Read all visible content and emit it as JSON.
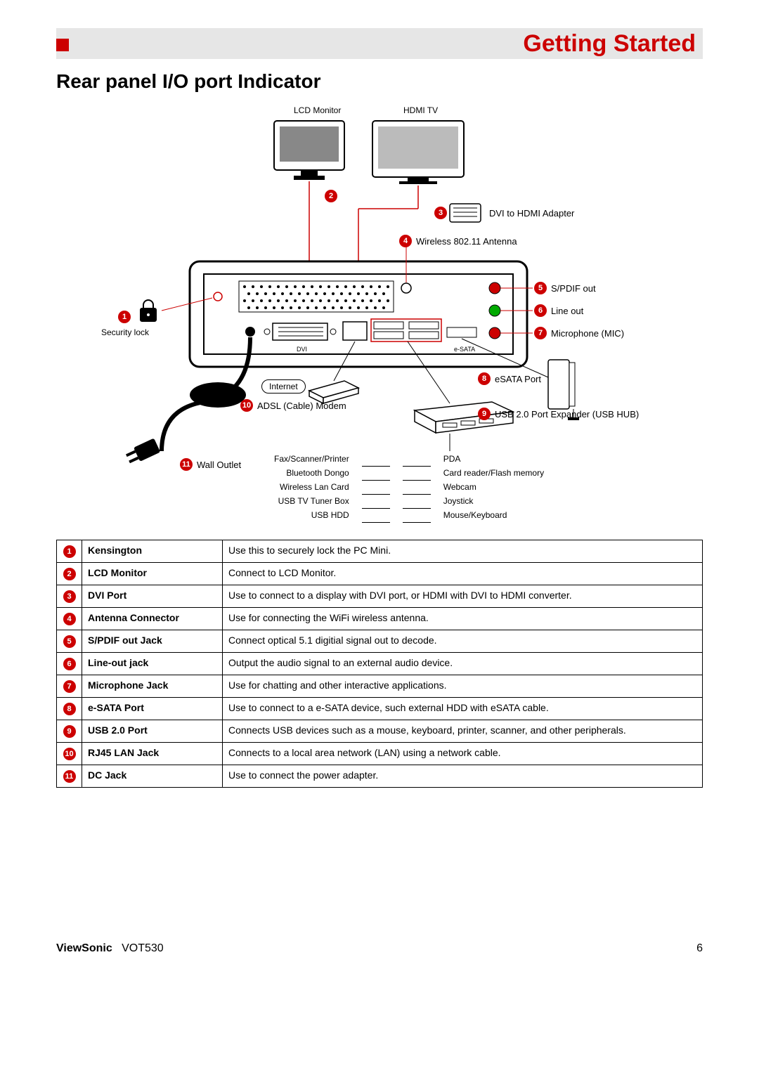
{
  "chapter_title": "Getting Started",
  "section_title": "Rear panel I/O port Indicator",
  "diagram": {
    "top_labels": {
      "lcd": "LCD Monitor",
      "hdmi": "HDMI TV"
    },
    "callouts": {
      "1": "Security lock",
      "2": "",
      "3": "DVI to HDMI Adapter",
      "4": "Wireless 802.11 Antenna",
      "5": "S/PDIF out",
      "6": "Line out",
      "7": "Microphone (MIC)",
      "8": "eSATA Port",
      "9": "USB 2.0 Port Expander (USB HUB)",
      "10": "ADSL (Cable) Modem",
      "11": "Wall Outlet"
    },
    "internet_label": "Internet",
    "rear_port_labels": {
      "dvi": "DVI",
      "esata": "e-SATA"
    },
    "hub_left": [
      "Fax/Scanner/Printer",
      "Bluetooth Dongo",
      "Wireless Lan Card",
      "USB TV Tuner Box",
      "USB HDD"
    ],
    "hub_right": [
      "PDA",
      "Card reader/Flash memory",
      "Webcam",
      "Joystick",
      "Mouse/Keyboard"
    ]
  },
  "table_rows": [
    {
      "n": "1",
      "name": "Kensington",
      "desc": "Use this to securely lock the PC Mini."
    },
    {
      "n": "2",
      "name": "LCD Monitor",
      "desc": "Connect to LCD Monitor."
    },
    {
      "n": "3",
      "name": "DVI Port",
      "desc": "Use to connect to a display with DVI port, or HDMI with DVI to HDMI converter."
    },
    {
      "n": "4",
      "name": "Antenna Connector",
      "desc": "Use for connecting the WiFi wireless antenna."
    },
    {
      "n": "5",
      "name": "S/PDIF out Jack",
      "desc": "Connect optical 5.1 digitial signal out to decode."
    },
    {
      "n": "6",
      "name": "Line-out jack",
      "desc": "Output the audio signal to an external audio device."
    },
    {
      "n": "7",
      "name": "Microphone Jack",
      "desc": "Use for chatting and other interactive applications."
    },
    {
      "n": "8",
      "name": "e-SATA Port",
      "desc": "Use to connect to a e-SATA device, such external HDD with eSATA cable."
    },
    {
      "n": "9",
      "name": "USB 2.0 Port",
      "desc": "Connects USB devices such as a mouse, keyboard, printer, scanner, and other peripherals."
    },
    {
      "n": "10",
      "name": "RJ45 LAN Jack",
      "desc": "Connects to a local area network (LAN) using a network cable."
    },
    {
      "n": "11",
      "name": "DC Jack",
      "desc": "Use to connect the power adapter."
    }
  ],
  "footer": {
    "brand": "ViewSonic",
    "model": "VOT530",
    "page": "6"
  },
  "colors": {
    "accent": "#cc0000",
    "header_bg": "#e6e6e6"
  }
}
